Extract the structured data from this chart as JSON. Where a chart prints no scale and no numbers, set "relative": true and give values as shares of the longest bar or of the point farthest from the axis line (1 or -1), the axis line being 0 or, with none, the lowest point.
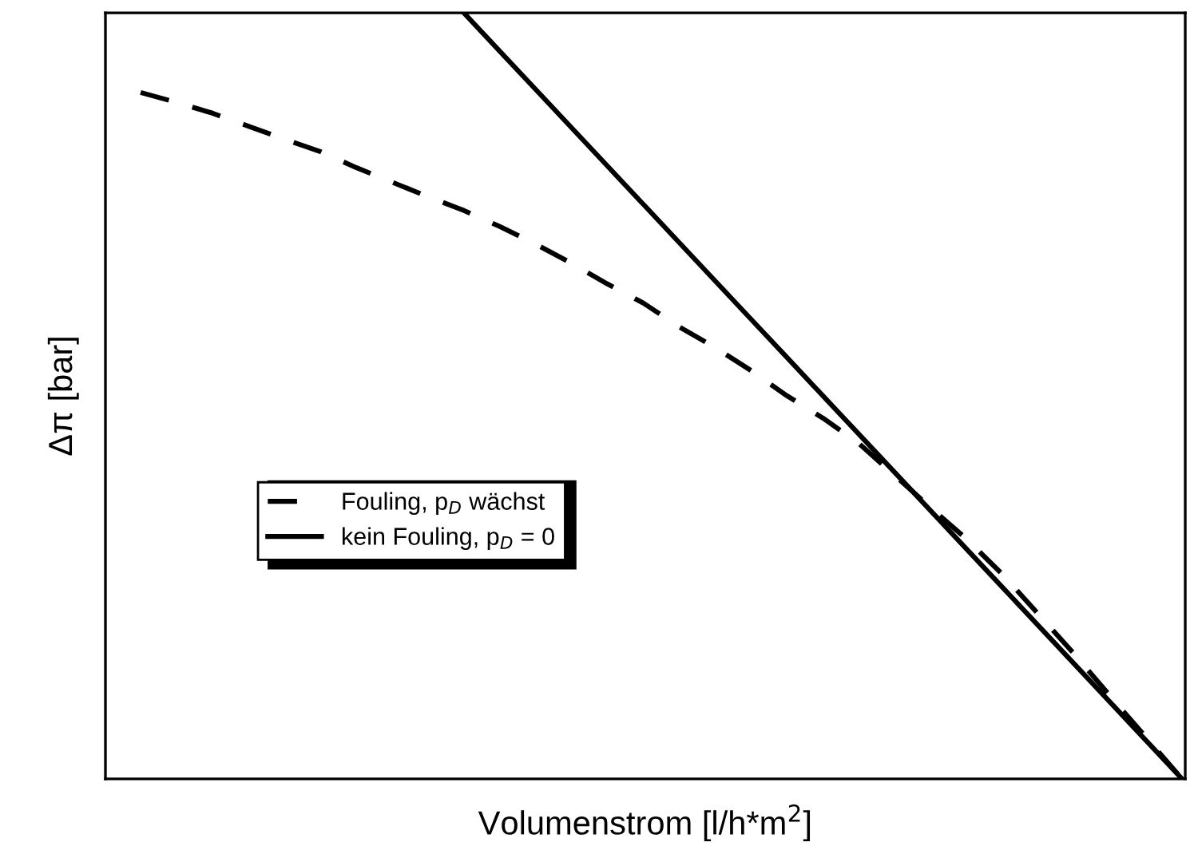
{
  "chart_data": {
    "type": "line",
    "relative": true,
    "xlabel": "Volumenstrom [l/h*m$^{2}$]",
    "ylabel": "Δπ [bar]",
    "categories": [
      null,
      null,
      null,
      null,
      null,
      null,
      null,
      null,
      null,
      null,
      null,
      null,
      null,
      null,
      null,
      null,
      null,
      null,
      null,
      null,
      null,
      null,
      null,
      null,
      null,
      null,
      null,
      null,
      null,
      null
    ],
    "series": [
      {
        "name": "Fouling, p$_{D}$ wächst",
        "color": "#000000",
        "line_style": "dashed",
        "values": [
          0.896,
          0.883,
          0.869,
          0.852,
          0.835,
          0.819,
          0.798,
          0.779,
          0.76,
          0.742,
          0.721,
          0.698,
          0.673,
          0.646,
          0.621,
          0.59,
          0.563,
          0.533,
          0.5,
          0.471,
          0.438,
          0.396,
          0.354,
          0.313,
          0.267,
          0.215,
          0.163,
          0.108,
          0.054,
          0
        ]
      },
      {
        "name": "kein Fouling, p$_{D}$ = 0",
        "color": "#000000",
        "line_style": "solid",
        "values": [
          null,
          null,
          null,
          null,
          null,
          null,
          null,
          null,
          null,
          1,
          0.95,
          0.9,
          0.85,
          0.8,
          0.75,
          0.7,
          0.65,
          0.6,
          0.55,
          0.5,
          0.45,
          0.4,
          0.35,
          0.3,
          0.25,
          0.2,
          0.15,
          0.1,
          0.05,
          0
        ]
      }
    ],
    "legend": "left",
    "grid": false,
    "marker": "none"
  }
}
